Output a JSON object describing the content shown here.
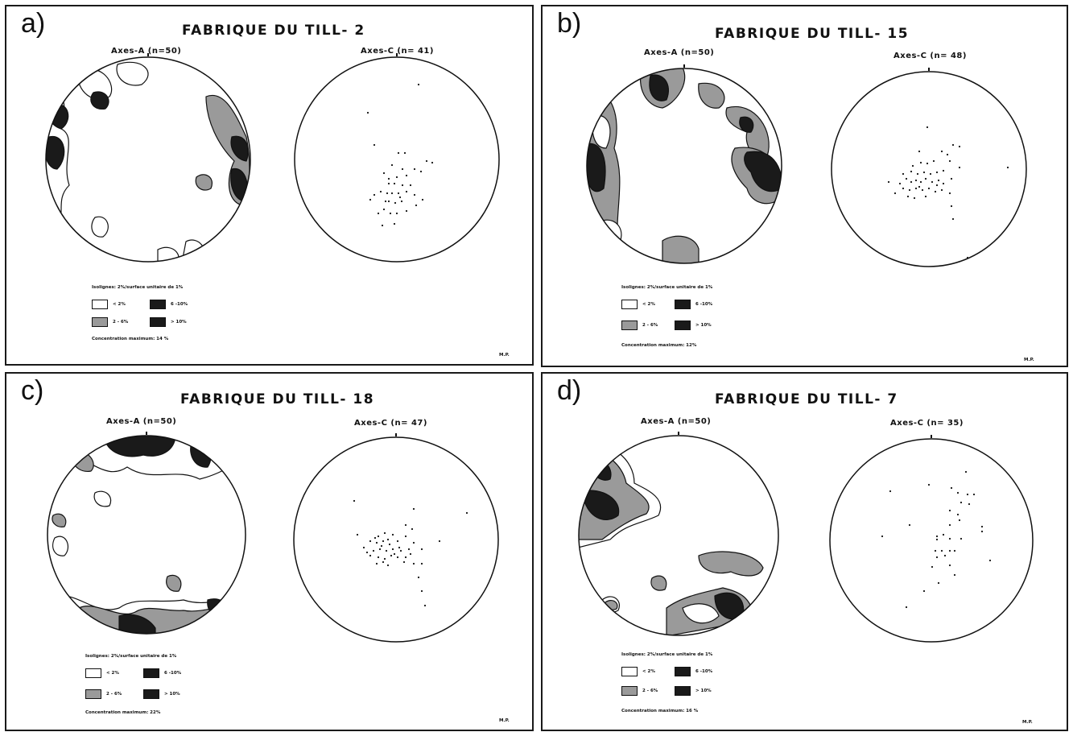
{
  "colors": {
    "ink": "#111111",
    "light": "#ffffff",
    "medium": "#9a9a9a",
    "dark": "#1a1a1a"
  },
  "panels": [
    {
      "letter": "a)",
      "title": "FABRIQUE DU TILL- 2",
      "axes_a": "Axes-A (n=50)",
      "axes_c": "Axes-C (n= 41)",
      "legend": {
        "isolines": "Isolignes: 2%/surface unitaire de 1%",
        "lt2": "< 2%",
        "r2_6": "2 - 6%",
        "r6_10": "6 -10%",
        "gt10": "> 10%",
        "conc": "Concentration maximum: 14 %"
      },
      "sig": "M.P."
    },
    {
      "letter": "b)",
      "title": "FABRIQUE DU TILL- 15",
      "axes_a": "Axes-A (n=50)",
      "axes_c": "Axes-C (n= 48)",
      "legend": {
        "isolines": "Isolignes: 2%/surface unitaire de 1%",
        "lt2": "< 2%",
        "r2_6": "2 - 6%",
        "r6_10": "6 -10%",
        "gt10": "> 10%",
        "conc": "Concentration maximum: 12%"
      },
      "sig": "M.P."
    },
    {
      "letter": "c)",
      "title": "FABRIQUE DU TILL- 18",
      "axes_a": "Axes-A (n=50)",
      "axes_c": "Axes-C (n= 47)",
      "legend": {
        "isolines": "Isolignes: 2%/surface unitaire de 1%",
        "lt2": "< 2%",
        "r2_6": "2 - 6%",
        "r6_10": "6 -10%",
        "gt10": "> 10%",
        "conc": "Concentration maximum: 22%"
      },
      "sig": "M.P."
    },
    {
      "letter": "d)",
      "title": "FABRIQUE DU TILL- 7",
      "axes_a": "Axes-A (n=50)",
      "axes_c": "Axes-C (n= 35)",
      "legend": {
        "isolines": "Isolignes: 2%/surface unitaire de 1%",
        "lt2": "< 2%",
        "r2_6": "2 - 6%",
        "r6_10": "6 -10%",
        "gt10": "> 10%",
        "conc": "Concentration maximum: 16 %"
      },
      "sig": "M.P."
    }
  ]
}
